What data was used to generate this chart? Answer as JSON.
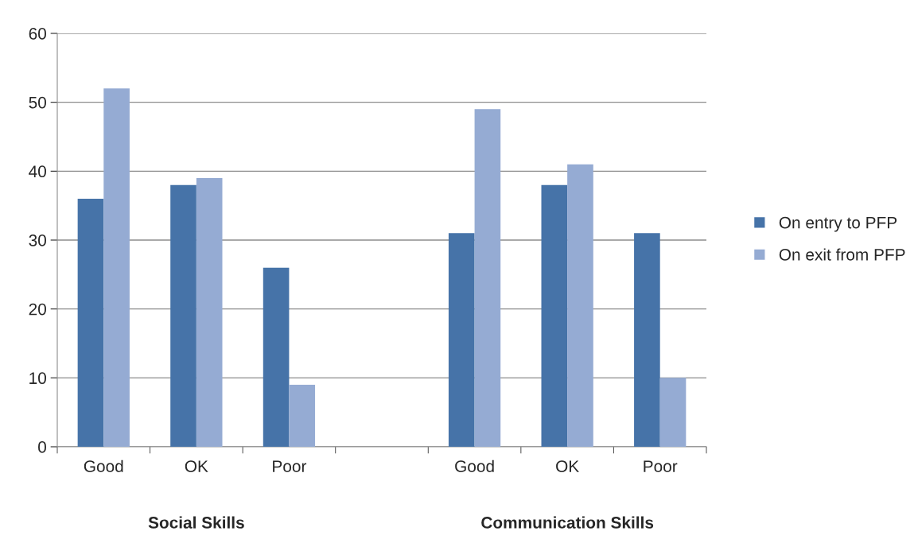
{
  "chart_data": {
    "type": "bar",
    "categories": [
      "Good",
      "OK",
      "Poor",
      null,
      "Good",
      "OK",
      "Poor"
    ],
    "series": [
      {
        "name": "On entry to PFP",
        "color": "#4673a8",
        "values": [
          36,
          38,
          26,
          null,
          31,
          38,
          31
        ]
      },
      {
        "name": "On exit from PFP",
        "color": "#95abd3",
        "values": [
          52,
          39,
          9,
          null,
          49,
          41,
          10
        ]
      }
    ],
    "annotations": [
      "Social Skills",
      "Communication Skills"
    ],
    "ylim": [
      0,
      60
    ],
    "yticks": [
      0,
      10,
      20,
      30,
      40,
      50,
      60
    ],
    "grid": "y",
    "legend": "right"
  }
}
